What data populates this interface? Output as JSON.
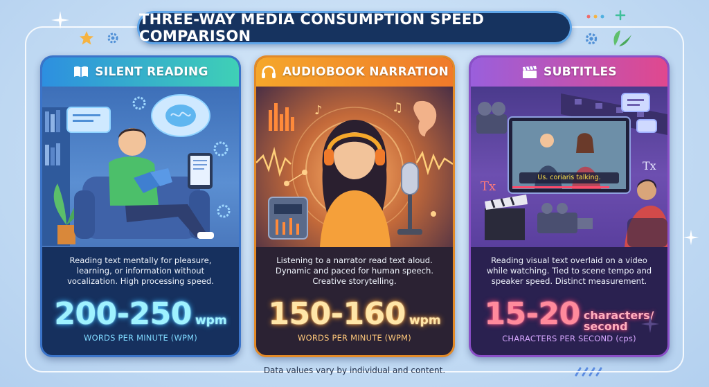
{
  "title": "THREE-WAY MEDIA CONSUMPTION SPEED COMPARISON",
  "footer": "Data values vary by individual and content.",
  "colors": {
    "background": "#c4dcf4",
    "title_pill": "#16335f",
    "silent_accent": "#2d8fe0",
    "audio_accent": "#f5a72b",
    "subtitle_accent": "#9a5fdc"
  },
  "cards": [
    {
      "icon": "book-icon",
      "label": "SILENT READING",
      "description": "Reading text mentally for pleasure, learning, or information without vocalization. High processing speed.",
      "value": "200-250",
      "unit": "wpm",
      "unit_full": "WORDS PER MINUTE (WPM)"
    },
    {
      "icon": "headphones-icon",
      "label": "AUDIOBOOK NARRATION",
      "description": "Listening to a narrator read text aloud. Dynamic and paced for human speech. Creative storytelling.",
      "value": "150-160",
      "unit": "wpm",
      "unit_full": "WORDS PER MINUTE (WPM)"
    },
    {
      "icon": "clapperboard-icon",
      "label": "SUBTITLES",
      "caption_on_screen": "Us. coriaris talking.",
      "description": "Reading visual text overlaid on a video while watching. Tied to scene tempo and speaker speed. Distinct measurement.",
      "value": "15-20",
      "unit_line1": "characters/",
      "unit_line2": "second",
      "unit_full": "CHARACTERS PER SECOND (cps)"
    }
  ]
}
